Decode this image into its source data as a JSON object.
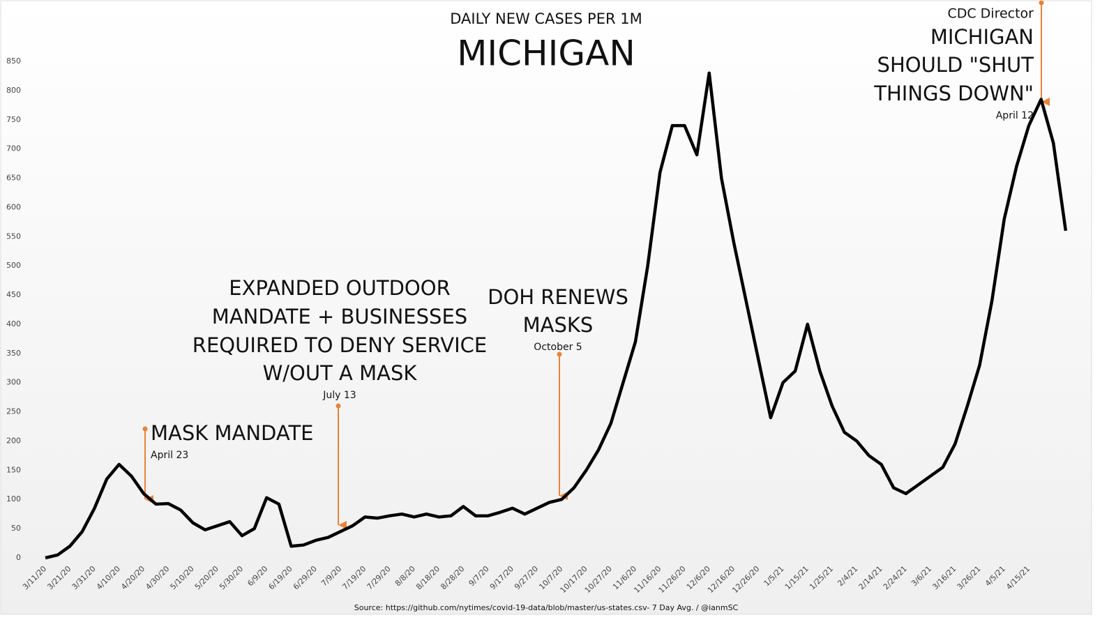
{
  "chart_data": {
    "type": "line",
    "title": "DAILY NEW CASES PER 1M",
    "subtitle": "MICHIGAN",
    "source": "Source: https://github.com/nytimes/covid-19-data/blob/master/us-states.csv- 7 Day Avg. / @ianmSC",
    "categories": [
      "3/11/20",
      null,
      "3/21/20",
      null,
      "3/31/20",
      null,
      "4/10/20",
      null,
      "4/20/20",
      null,
      "4/30/20",
      null,
      "5/10/20",
      null,
      "5/20/20",
      null,
      "5/30/20",
      null,
      "6/9/20",
      null,
      "6/19/20",
      null,
      "6/29/20",
      null,
      "7/9/20",
      null,
      "7/19/20",
      null,
      "7/29/20",
      null,
      "8/8/20",
      null,
      "8/18/20",
      null,
      "8/28/20",
      null,
      "9/7/20",
      null,
      "9/17/20",
      null,
      "9/27/20",
      null,
      "10/7/20",
      null,
      "10/17/20",
      null,
      "10/27/20",
      null,
      "11/6/20",
      null,
      "11/16/20",
      null,
      "11/26/20",
      null,
      "12/6/20",
      null,
      "12/16/20",
      null,
      "12/26/20",
      null,
      "1/5/21",
      null,
      "1/15/21",
      null,
      "1/25/21",
      null,
      "2/4/21",
      null,
      "2/14/21",
      null,
      "2/24/21",
      null,
      "3/6/21",
      null,
      "3/16/21",
      null,
      "3/26/21",
      null,
      "4/5/21",
      null,
      "4/15/21",
      null,
      null,
      null
    ],
    "series": [
      {
        "name": "Michigan",
        "color": "#000000",
        "values": [
          0,
          5,
          20,
          45,
          85,
          135,
          160,
          140,
          110,
          92,
          93,
          82,
          60,
          48,
          55,
          62,
          38,
          50,
          103,
          92,
          20,
          22,
          30,
          35,
          45,
          55,
          70,
          68,
          72,
          75,
          70,
          75,
          70,
          72,
          88,
          72,
          72,
          78,
          85,
          75,
          85,
          95,
          100,
          120,
          150,
          185,
          230,
          300,
          370,
          500,
          660,
          740,
          740,
          690,
          830,
          650,
          540,
          440,
          340,
          240,
          300,
          320,
          400,
          320,
          260,
          215,
          200,
          175,
          160,
          120,
          110,
          125,
          140,
          155,
          195,
          260,
          330,
          440,
          580,
          670,
          740,
          785,
          710,
          560
        ]
      }
    ],
    "ylim": [
      0,
      850
    ],
    "yticks": [
      0,
      50,
      100,
      150,
      200,
      250,
      300,
      350,
      400,
      450,
      500,
      550,
      600,
      650,
      700,
      750,
      800,
      850
    ],
    "annotations": [
      {
        "lines": [
          "MASK MANDATE"
        ],
        "date": "April 23"
      },
      {
        "lines": [
          "EXPANDED OUTDOOR",
          "MANDATE + BUSINESSES",
          "REQUIRED TO DENY SERVICE",
          "W/OUT A MASK"
        ],
        "date": "July 13"
      },
      {
        "lines": [
          "DOH RENEWS",
          "MASKS"
        ],
        "date": "October 5"
      },
      {
        "lines": [
          "CDC Director",
          "MICHIGAN",
          "SHOULD \"SHUT",
          "THINGS DOWN\""
        ],
        "date": "April 12"
      }
    ]
  }
}
